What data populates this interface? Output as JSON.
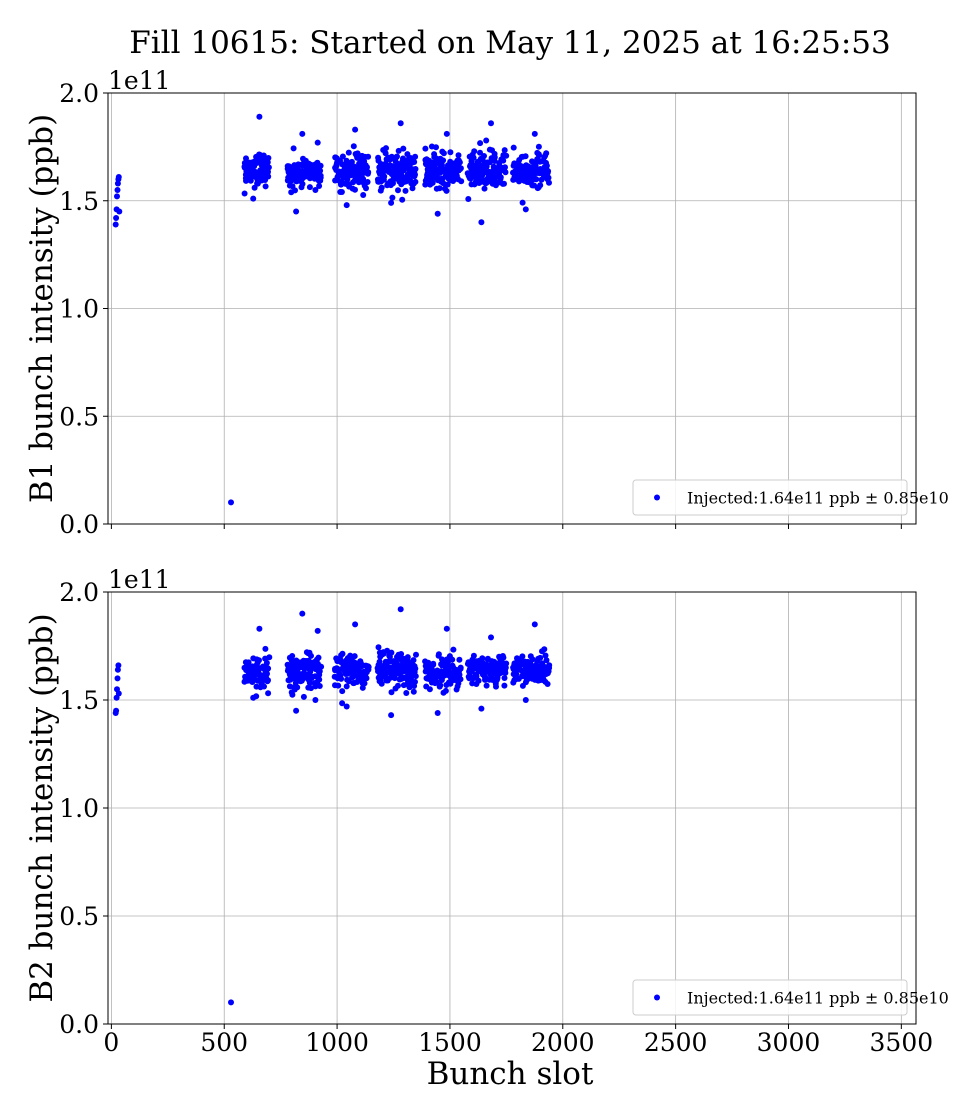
{
  "figure": {
    "title": "Fill 10615: Started on May 11, 2025 at 16:25:53",
    "xlabel": "Bunch slot"
  },
  "chart_data": [
    {
      "type": "scatter",
      "ylabel": "B1 bunch intensity (ppb)",
      "y_offset_label": "1e11",
      "xlim": [
        -15,
        3565
      ],
      "ylim": [
        0.0,
        2.0
      ],
      "x_ticks": [
        0,
        500,
        1000,
        1500,
        2000,
        2500,
        3000,
        3500
      ],
      "y_ticks": [
        "0.0",
        "0.5",
        "1.0",
        "1.5",
        "2.0"
      ],
      "x_tick_labels_shown": false,
      "grid": true,
      "legend": {
        "placement": "lower right",
        "label": "Injected:1.64e11 ppb ± 0.85e10"
      },
      "color": "#0000ff",
      "series": [
        {
          "name": "Injected:1.64e11 ppb ± 0.85e10",
          "points": [
            [
              19,
              1.39
            ],
            [
              21,
              1.42
            ],
            [
              23,
              1.46
            ],
            [
              25,
              1.52
            ],
            [
              27,
              1.55
            ],
            [
              29,
              1.58
            ],
            [
              31,
              1.6
            ],
            [
              33,
              1.61
            ],
            [
              35,
              1.45
            ],
            [
              530,
              0.1
            ]
          ],
          "trains": [
            {
              "x_start": 590,
              "x_end": 700,
              "mean": 1.645,
              "spread": 0.065,
              "min": 1.51,
              "max": 1.89
            },
            {
              "x_start": 780,
              "x_end": 890,
              "mean": 1.635,
              "spread": 0.06,
              "min": 1.45,
              "max": 1.81
            },
            {
              "x_start": 890,
              "x_end": 930,
              "mean": 1.64,
              "spread": 0.055,
              "min": 1.55,
              "max": 1.77
            },
            {
              "x_start": 990,
              "x_end": 1140,
              "mean": 1.64,
              "spread": 0.065,
              "min": 1.48,
              "max": 1.83
            },
            {
              "x_start": 1180,
              "x_end": 1350,
              "mean": 1.64,
              "spread": 0.07,
              "min": 1.49,
              "max": 1.86
            },
            {
              "x_start": 1390,
              "x_end": 1550,
              "mean": 1.64,
              "spread": 0.065,
              "min": 1.44,
              "max": 1.81
            },
            {
              "x_start": 1580,
              "x_end": 1750,
              "mean": 1.64,
              "spread": 0.075,
              "min": 1.4,
              "max": 1.86
            },
            {
              "x_start": 1780,
              "x_end": 1940,
              "mean": 1.635,
              "spread": 0.06,
              "min": 1.46,
              "max": 1.81
            }
          ]
        }
      ]
    },
    {
      "type": "scatter",
      "ylabel": "B2 bunch intensity (ppb)",
      "y_offset_label": "1e11",
      "xlim": [
        -15,
        3565
      ],
      "ylim": [
        0.0,
        2.0
      ],
      "x_ticks": [
        0,
        500,
        1000,
        1500,
        2000,
        2500,
        3000,
        3500
      ],
      "x_tick_labels": [
        "0",
        "500",
        "1000",
        "1500",
        "2000",
        "2500",
        "3000",
        "3500"
      ],
      "y_ticks": [
        "0.0",
        "0.5",
        "1.0",
        "1.5",
        "2.0"
      ],
      "grid": true,
      "legend": {
        "placement": "lower right",
        "label": "Injected:1.64e11 ppb ± 0.85e10"
      },
      "color": "#0000ff",
      "series": [
        {
          "name": "Injected:1.64e11 ppb ± 0.85e10",
          "points": [
            [
              19,
              1.44
            ],
            [
              21,
              1.45
            ],
            [
              23,
              1.51
            ],
            [
              25,
              1.55
            ],
            [
              27,
              1.6
            ],
            [
              29,
              1.64
            ],
            [
              31,
              1.66
            ],
            [
              33,
              1.53
            ],
            [
              530,
              0.1
            ]
          ],
          "trains": [
            {
              "x_start": 590,
              "x_end": 700,
              "mean": 1.625,
              "spread": 0.06,
              "min": 1.51,
              "max": 1.83
            },
            {
              "x_start": 780,
              "x_end": 890,
              "mean": 1.63,
              "spread": 0.065,
              "min": 1.45,
              "max": 1.9
            },
            {
              "x_start": 890,
              "x_end": 930,
              "mean": 1.64,
              "spread": 0.06,
              "min": 1.5,
              "max": 1.82
            },
            {
              "x_start": 990,
              "x_end": 1140,
              "mean": 1.64,
              "spread": 0.06,
              "min": 1.47,
              "max": 1.85
            },
            {
              "x_start": 1180,
              "x_end": 1350,
              "mean": 1.635,
              "spread": 0.075,
              "min": 1.43,
              "max": 1.92
            },
            {
              "x_start": 1390,
              "x_end": 1550,
              "mean": 1.625,
              "spread": 0.06,
              "min": 1.44,
              "max": 1.83
            },
            {
              "x_start": 1580,
              "x_end": 1750,
              "mean": 1.635,
              "spread": 0.055,
              "min": 1.46,
              "max": 1.79
            },
            {
              "x_start": 1780,
              "x_end": 1940,
              "mean": 1.64,
              "spread": 0.055,
              "min": 1.5,
              "max": 1.85
            }
          ]
        }
      ]
    }
  ]
}
